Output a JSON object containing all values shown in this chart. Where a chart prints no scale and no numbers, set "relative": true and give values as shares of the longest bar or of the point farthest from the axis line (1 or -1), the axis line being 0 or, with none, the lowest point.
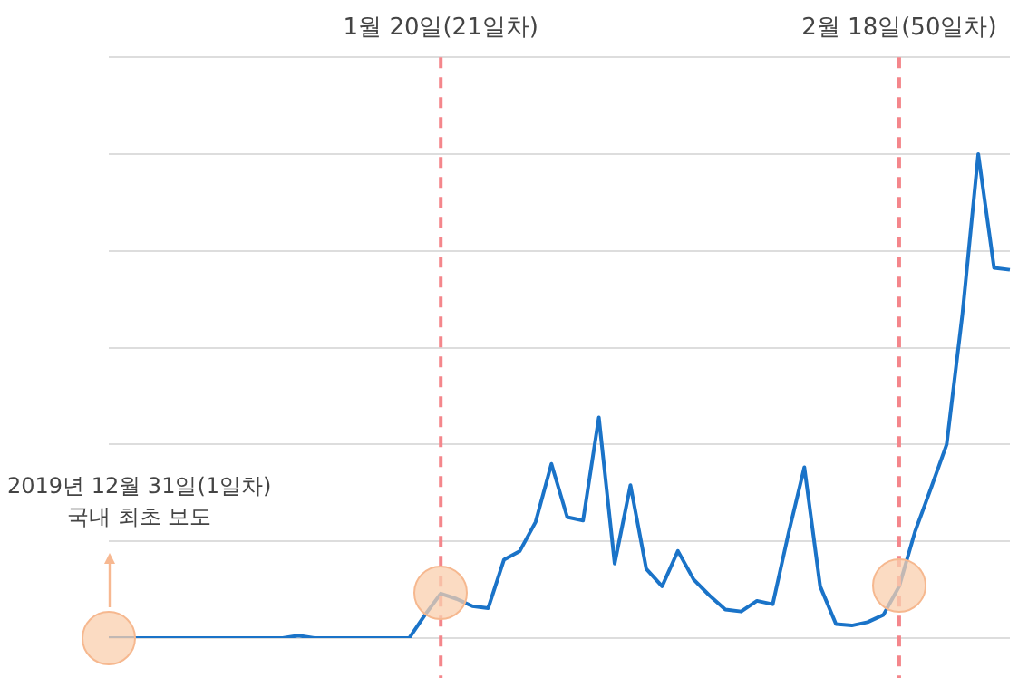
{
  "chart_data": {
    "type": "line",
    "relative": true,
    "grid": "y",
    "marker": "none",
    "categories": [
      null,
      null,
      null,
      null,
      null,
      null,
      null,
      null,
      null,
      null,
      null,
      null,
      null,
      null,
      null,
      null,
      null,
      null,
      null,
      null,
      null,
      "1월 20일(21일차)",
      null,
      null,
      null,
      null,
      null,
      null,
      null,
      null,
      null,
      null,
      null,
      null,
      null,
      null,
      null,
      null,
      null,
      null,
      null,
      null,
      null,
      null,
      null,
      null,
      null,
      null,
      null,
      null,
      "2월 18일(50일차)",
      null,
      null,
      null,
      null,
      null,
      null,
      null
    ],
    "series": [
      {
        "color": "#1a73c8",
        "values": [
          0,
          0,
          0,
          0,
          0,
          0,
          0,
          0,
          0,
          0,
          0,
          0,
          0.005,
          0,
          0,
          0,
          0,
          0,
          0,
          0,
          0.048,
          0.092,
          0.081,
          0.066,
          0.062,
          0.162,
          0.18,
          0.24,
          0.36,
          0.25,
          0.243,
          0.456,
          0.154,
          0.316,
          0.143,
          0.107,
          0.18,
          0.121,
          0.088,
          0.059,
          0.055,
          0.077,
          0.07,
          0.217,
          0.353,
          0.107,
          0.029,
          0.026,
          0.033,
          0.048,
          0.107,
          0.22,
          0.309,
          0.4,
          0.67,
          1,
          0.765,
          0.761
        ]
      }
    ],
    "ref_lines": [
      {
        "axis": "x",
        "value": "1월 20일(21일차)",
        "color": "#f4868b",
        "line_style": "dashed"
      },
      {
        "axis": "x",
        "value": "2월 18일(50일차)",
        "color": "#f4868b",
        "line_style": "dashed"
      }
    ],
    "annotations": [
      "2019년 12월 31일(1일차)\n국내 최초 보도"
    ]
  }
}
